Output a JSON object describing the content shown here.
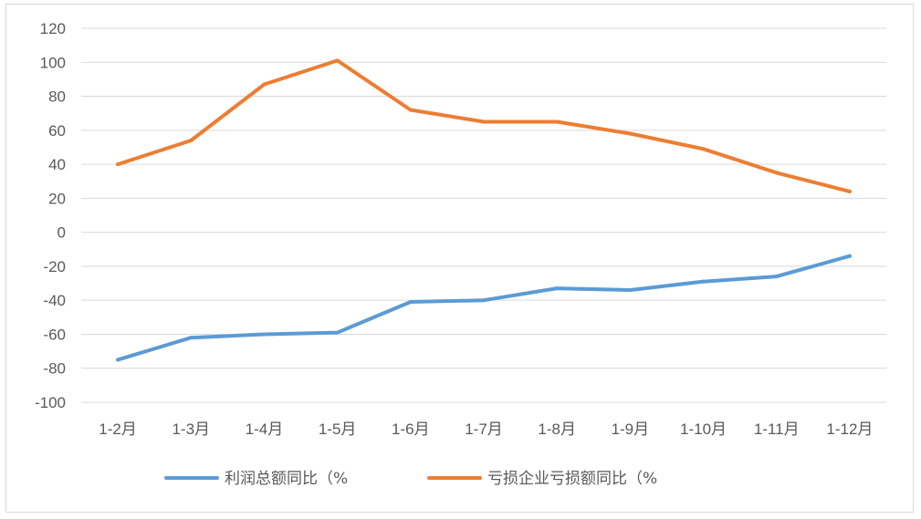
{
  "chart_data": {
    "type": "line",
    "categories": [
      "1-2月",
      "1-3月",
      "1-4月",
      "1-5月",
      "1-6月",
      "1-7月",
      "1-8月",
      "1-9月",
      "1-10月",
      "1-11月",
      "1-12月"
    ],
    "series": [
      {
        "name": "利润总额同比（%",
        "color": "#5b9bd5",
        "values": [
          -75,
          -62,
          -60,
          -59,
          -41,
          -40,
          -33,
          -34,
          -29,
          -26,
          -14
        ]
      },
      {
        "name": "亏损企业亏损额同比（%",
        "color": "#ed7d31",
        "values": [
          40,
          54,
          87,
          101,
          72,
          65,
          65,
          58,
          49,
          35,
          24
        ]
      }
    ],
    "ylim": [
      -100,
      120
    ],
    "yticks": [
      "120",
      "100",
      "80",
      "60",
      "40",
      "20",
      "0",
      "-20",
      "-40",
      "-60",
      "-80",
      "-100"
    ],
    "grid": true,
    "legend": "bottom"
  }
}
